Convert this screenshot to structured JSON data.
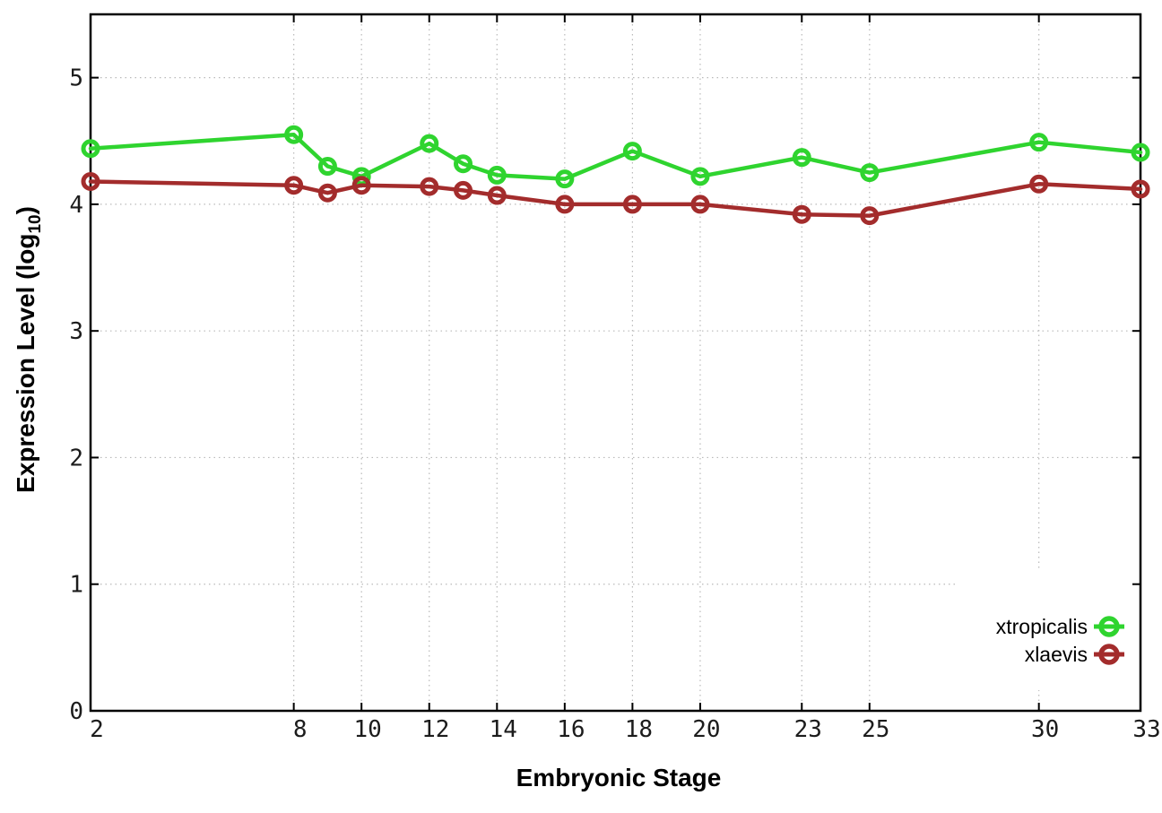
{
  "chart_data": {
    "type": "line",
    "title": "",
    "xlabel": "Embryonic Stage",
    "ylabel": "Expression Level (log10)",
    "ylabel_parts": [
      "Expression Level (log",
      "10",
      ")"
    ],
    "xlim": [
      2,
      33
    ],
    "ylim": [
      0,
      5.5
    ],
    "xticks": [
      2,
      8,
      10,
      12,
      14,
      16,
      18,
      20,
      23,
      25,
      30,
      33
    ],
    "yticks": [
      0,
      1,
      2,
      3,
      4,
      5
    ],
    "grid": true,
    "marker": "open-circle",
    "legend_position": "inside-bottom-right",
    "legend_opaque": true,
    "x": [
      2,
      8,
      9,
      10,
      12,
      13,
      14,
      16,
      18,
      20,
      23,
      25,
      30,
      33
    ],
    "series": [
      {
        "name": "xtropicalis",
        "color": "#2fd42f",
        "values": [
          4.44,
          4.55,
          4.3,
          4.22,
          4.48,
          4.32,
          4.23,
          4.2,
          4.42,
          4.22,
          4.37,
          4.25,
          4.49,
          4.41
        ]
      },
      {
        "name": "xlaevis",
        "color": "#a32c2c",
        "values": [
          4.18,
          4.15,
          4.09,
          4.15,
          4.14,
          4.11,
          4.07,
          4.0,
          4.0,
          4.0,
          3.92,
          3.91,
          4.16,
          4.12
        ]
      }
    ]
  }
}
